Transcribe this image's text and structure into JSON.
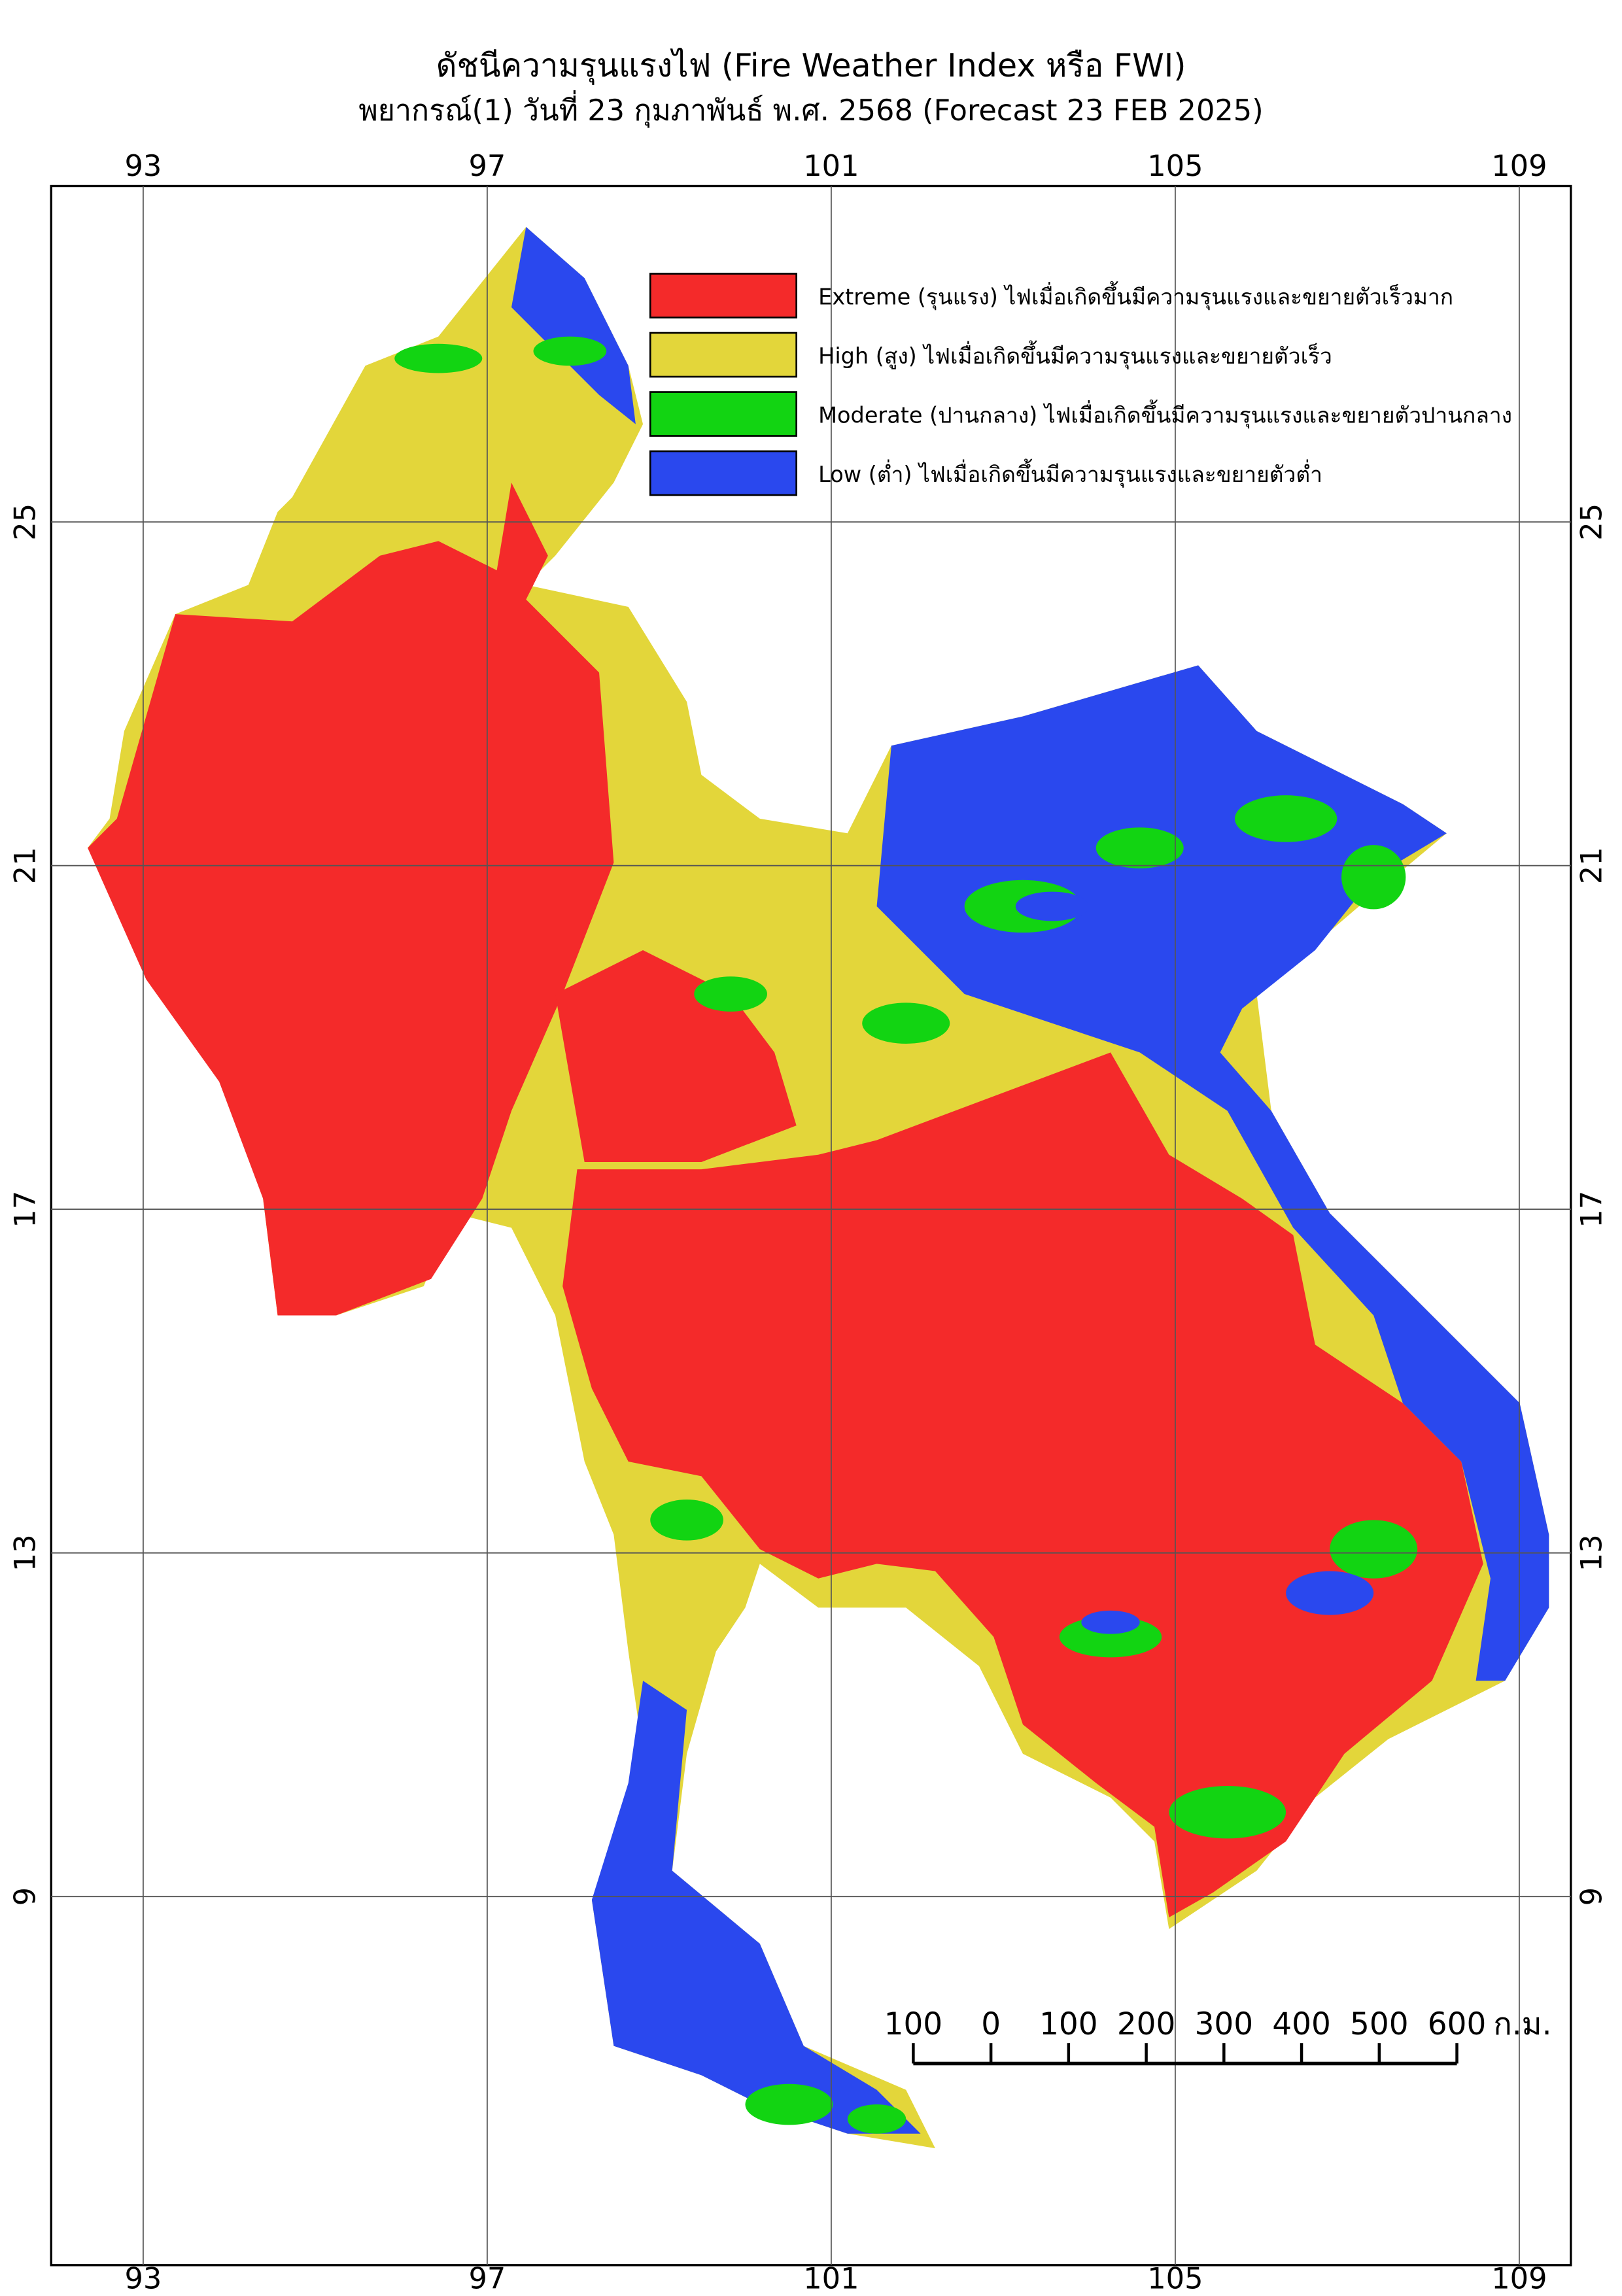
{
  "map": {
    "title": "ดัชนีความรุนแรงไฟ (Fire Weather Index หรือ FWI)",
    "subtitle": "พยากรณ์(1) วันที่ 23 กุมภาพันธ์ พ.ศ. 2568 (Forecast 23 FEB 2025)",
    "xlim": [
      91.93,
      109.6
    ],
    "ylim": [
      4.71,
      28.91
    ],
    "xticks": [
      93,
      97,
      101,
      105,
      109
    ],
    "yticks": [
      25,
      21,
      17,
      13,
      9
    ],
    "grid": true,
    "legend": [
      {
        "label": "Extreme (รุนแรง) ไฟเมื่อเกิดขึ้นมีความรุนแรงและขยายตัวเร็วมาก",
        "color": "#f42a2a"
      },
      {
        "label": "High (สูง) ไฟเมื่อเกิดขึ้นมีความรุนแรงและขยายตัวเร็ว",
        "color": "#e3d63a"
      },
      {
        "label": "Moderate (ปานกลาง) ไฟเมื่อเกิดขึ้นมีความรุนแรงและขยายตัวปานกลาง",
        "color": "#12d412"
      },
      {
        "label": "Low (ต่ำ) ไฟเมื่อเกิดขึ้นมีความรุนแรงและขยายตัวต่ำ",
        "color": "#2a48ee"
      }
    ],
    "scale_bar": {
      "ticks": [
        {
          "value": -100,
          "label": "100"
        },
        0,
        100,
        200,
        300,
        400,
        500,
        600
      ],
      "unit": "ก.ม."
    }
  }
}
